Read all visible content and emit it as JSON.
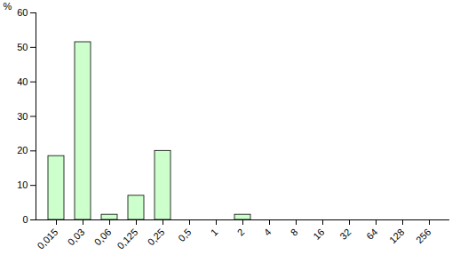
{
  "chart_data": {
    "type": "bar",
    "categories": [
      "0,015",
      "0,03",
      "0,06",
      "0,125",
      "0,25",
      "0,5",
      "1",
      "2",
      "4",
      "8",
      "16",
      "32",
      "64",
      "128",
      "256"
    ],
    "values": [
      18.5,
      51.5,
      1.5,
      7,
      20,
      0,
      0,
      1.5,
      0,
      0,
      0,
      0,
      0,
      0,
      0
    ],
    "color": "#ccffcc",
    "y_label": "%",
    "ylim": [
      0,
      60
    ],
    "yticks": [
      0,
      10,
      20,
      30,
      40,
      50,
      60
    ],
    "grid": false
  }
}
